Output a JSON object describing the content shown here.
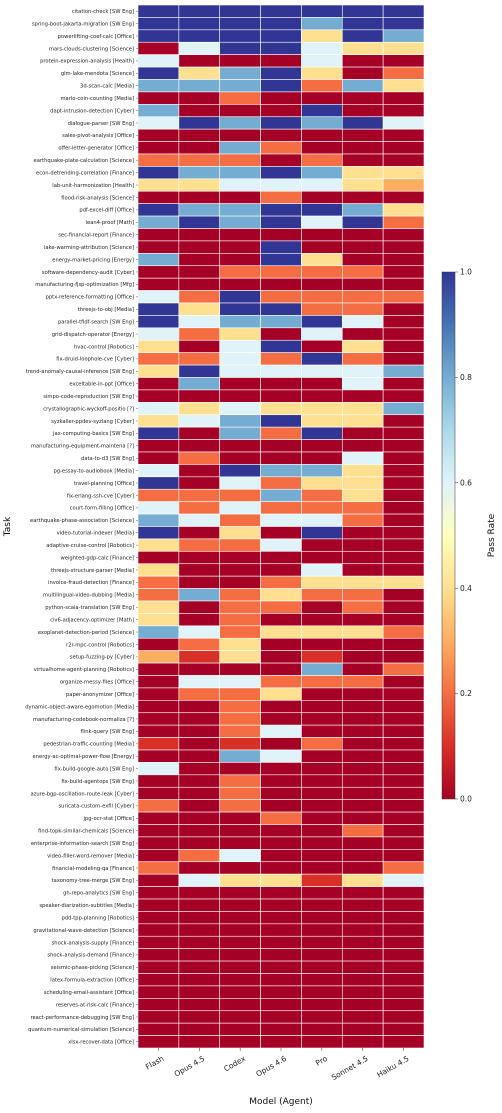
{
  "chart_data": {
    "type": "heatmap",
    "xlabel": "Model (Agent)",
    "ylabel": "Task",
    "colorbar_label": "Pass Rate",
    "colorbar_ticks": [
      "0.0",
      "0.2",
      "0.4",
      "0.6",
      "0.8",
      "1.0"
    ],
    "vmin": 0,
    "vmax": 1,
    "colormap": "RdYlBu",
    "columns": [
      "Flash",
      "Opus 4.5",
      "Codex",
      "Opus 4.6",
      "Pro",
      "Sonnet 4.5",
      "Haiku 4.5"
    ],
    "rows": [
      {
        "label": "citation-check [SW Eng]",
        "values": [
          1,
          1,
          1,
          1,
          1,
          1,
          1
        ]
      },
      {
        "label": "spring-boot-jakarta-migration [SW Eng]",
        "values": [
          1,
          1,
          1,
          1,
          0.8,
          1,
          1
        ]
      },
      {
        "label": "powerlifting-coef-calc [Office]",
        "values": [
          1,
          1,
          1,
          1,
          0.4,
          1,
          0.8
        ]
      },
      {
        "label": "mars-clouds-clustering [Science]",
        "values": [
          0,
          0.6,
          1,
          1,
          0.6,
          0.4,
          0.4
        ]
      },
      {
        "label": "protein-expression-analysis [Health]",
        "values": [
          0.6,
          0,
          0,
          0,
          0.6,
          0,
          0
        ]
      },
      {
        "label": "glm-lake-mendota [Science]",
        "values": [
          1,
          0.4,
          0.8,
          1,
          0.4,
          0,
          0.2
        ]
      },
      {
        "label": "3d-scan-calc [Media]",
        "values": [
          0.8,
          0.8,
          0.8,
          1,
          0.2,
          0.8,
          0.4
        ]
      },
      {
        "label": "marlo-coin-counting [Media]",
        "values": [
          0,
          0,
          0.2,
          0,
          0,
          0,
          0
        ]
      },
      {
        "label": "dapt-intrusion-detection [Cyber]",
        "values": [
          0.8,
          0,
          0,
          0,
          1,
          0,
          0
        ]
      },
      {
        "label": "dialogue-parser [SW Eng]",
        "values": [
          0.6,
          1,
          0.8,
          1,
          0.8,
          1,
          0.6
        ]
      },
      {
        "label": "sales-pivot-analysis [Office]",
        "values": [
          0,
          0,
          0,
          0,
          0,
          0,
          0
        ]
      },
      {
        "label": "offer-letter-generator [Office]",
        "values": [
          0,
          0,
          0.8,
          0.2,
          0,
          0,
          0
        ]
      },
      {
        "label": "earthquake-plate-calculation [Science]",
        "values": [
          0.2,
          0.2,
          0.2,
          0,
          0.2,
          0,
          0
        ]
      },
      {
        "label": "econ-detrending-correlation [Finance]",
        "values": [
          1,
          0.8,
          0.8,
          1,
          0.8,
          0.4,
          0.4
        ]
      },
      {
        "label": "lab-unit-harmonization [Health]",
        "values": [
          0.4,
          0.4,
          0.6,
          0.6,
          0.6,
          0.4,
          0.3
        ]
      },
      {
        "label": "flood-risk-analysis [Science]",
        "values": [
          0,
          0,
          0,
          0.2,
          0,
          0,
          0
        ]
      },
      {
        "label": "pdf-excel-diff [Office]",
        "values": [
          1,
          0.8,
          0.8,
          1,
          1,
          0.8,
          0.4
        ]
      },
      {
        "label": "lean4-proof [Math]",
        "values": [
          0.8,
          1,
          0.8,
          1,
          0.6,
          1,
          0.2
        ]
      },
      {
        "label": "sec-financial-report [Finance]",
        "values": [
          0,
          0,
          0,
          0,
          0,
          0,
          0
        ]
      },
      {
        "label": "lake-warming-attribution [Science]",
        "values": [
          0,
          0,
          0,
          1,
          0,
          0,
          0
        ]
      },
      {
        "label": "energy-market-pricing [Energy]",
        "values": [
          0.8,
          0,
          0,
          1,
          0.4,
          0,
          0
        ]
      },
      {
        "label": "software-dependency-audit [Cyber]",
        "values": [
          0,
          0,
          0.2,
          0.2,
          0.2,
          0.2,
          0
        ]
      },
      {
        "label": "manufacturing-fjsp-optimization [Mfg]",
        "values": [
          0,
          0,
          0,
          0,
          0,
          0,
          0
        ]
      },
      {
        "label": "pptx-reference-formatting [Office]",
        "values": [
          0.6,
          0.2,
          1,
          0.2,
          0.2,
          0.2,
          0.2
        ]
      },
      {
        "label": "threejs-to-obj [Media]",
        "values": [
          1,
          0.4,
          1,
          1,
          0.2,
          0.2,
          0
        ]
      },
      {
        "label": "parallel-tfidf-search [SW Eng]",
        "values": [
          1,
          0.6,
          0.8,
          0.8,
          1,
          0.6,
          0
        ]
      },
      {
        "label": "grid-dispatch-operator [Energy]",
        "values": [
          0.6,
          0.2,
          0.4,
          0,
          0.6,
          0,
          0
        ]
      },
      {
        "label": "hvac-control [Robotics]",
        "values": [
          0.4,
          0,
          0.6,
          1,
          0,
          0.4,
          0
        ]
      },
      {
        "label": "fix-druid-loophole-cve [Cyber]",
        "values": [
          0.2,
          0.2,
          0.6,
          0.2,
          1,
          0.2,
          0
        ]
      },
      {
        "label": "trend-anomaly-causal-inference [SW Eng]",
        "values": [
          0.4,
          1,
          0.6,
          0.6,
          0.6,
          0.6,
          0.8
        ]
      },
      {
        "label": "exceltable-in-ppt [Office]",
        "values": [
          0,
          0.8,
          0,
          0,
          0,
          0.6,
          0
        ]
      },
      {
        "label": "simpo-code-reproduction [SW Eng]",
        "values": [
          0,
          0,
          0,
          0,
          0,
          0,
          0
        ]
      },
      {
        "label": "crystallographic-wyckoff-positio [?]",
        "values": [
          0.6,
          0.4,
          0.6,
          0.4,
          0.4,
          0.4,
          0.8
        ]
      },
      {
        "label": "syzkaller-ppdev-syzlang [Cyber]",
        "values": [
          0.4,
          0.6,
          0.8,
          1,
          0.4,
          0.4,
          0
        ]
      },
      {
        "label": "jax-computing-basics [SW Eng]",
        "values": [
          1,
          0,
          0.8,
          0.2,
          1,
          0,
          0
        ]
      },
      {
        "label": "manufacturing-equipment-maintena [?]",
        "values": [
          0,
          0,
          0,
          0,
          0,
          0,
          0
        ]
      },
      {
        "label": "data-to-d3 [SW Eng]",
        "values": [
          0,
          0.2,
          0,
          0,
          0,
          0.6,
          0
        ]
      },
      {
        "label": "pg-essay-to-audiobook [Media]",
        "values": [
          0.6,
          0,
          1,
          0.8,
          0.8,
          0.4,
          0
        ]
      },
      {
        "label": "travel-planning [Office]",
        "values": [
          1,
          0,
          0.6,
          0.2,
          0.4,
          0.4,
          0
        ]
      },
      {
        "label": "fix-erlang-ssh-cve [Cyber]",
        "values": [
          0.2,
          0.2,
          0.2,
          0.8,
          0.2,
          0.4,
          0
        ]
      },
      {
        "label": "court-form-filling [Office]",
        "values": [
          0.6,
          0.2,
          0.6,
          0.2,
          0.2,
          0.2,
          0
        ]
      },
      {
        "label": "earthquake-phase-association [Science]",
        "values": [
          0.8,
          0.6,
          0.2,
          0.6,
          0.6,
          0.2,
          0
        ]
      },
      {
        "label": "video-tutorial-indexer [Media]",
        "values": [
          1,
          0,
          0.4,
          0,
          1,
          0,
          0
        ]
      },
      {
        "label": "adaptive-cruise-control [Robotics]",
        "values": [
          0.4,
          0.2,
          0.2,
          0.6,
          0,
          0,
          0
        ]
      },
      {
        "label": "weighted-gdp-calc [Finance]",
        "values": [
          0,
          0,
          0,
          0,
          0,
          0,
          0
        ]
      },
      {
        "label": "threejs-structure-parser [Media]",
        "values": [
          0.4,
          0,
          0,
          0,
          0.6,
          0,
          0
        ]
      },
      {
        "label": "invoice-fraud-detection [Finance]",
        "values": [
          0.2,
          0,
          0,
          0.2,
          0.4,
          0.4,
          0.4
        ]
      },
      {
        "label": "multilingual-video-dubbing [Media]",
        "values": [
          0.2,
          0.8,
          0.2,
          0.4,
          0.2,
          0.2,
          0
        ]
      },
      {
        "label": "python-scala-translation [SW Eng]",
        "values": [
          0.4,
          0,
          0.2,
          0.2,
          0,
          0.2,
          0
        ]
      },
      {
        "label": "civ6-adjacency-optimizer [Math]",
        "values": [
          0.4,
          0,
          0.2,
          0,
          0,
          0,
          0
        ]
      },
      {
        "label": "exoplanet-detection-period [Science]",
        "values": [
          0.8,
          0.6,
          0.2,
          0.4,
          0.4,
          0.4,
          0.2
        ]
      },
      {
        "label": "r2r-mpc-control [Robotics]",
        "values": [
          0,
          0.2,
          0.4,
          0,
          0,
          0,
          0
        ]
      },
      {
        "label": "setup-fuzzing-py [Cyber]",
        "values": [
          0.3,
          0.1,
          0.4,
          0,
          0.1,
          0,
          0
        ]
      },
      {
        "label": "virtualhome-agent-planning [Robotics]",
        "values": [
          0,
          0,
          0,
          0,
          0.8,
          0,
          0.2
        ]
      },
      {
        "label": "organize-messy-files [Office]",
        "values": [
          0,
          0.6,
          0.6,
          0.2,
          0.2,
          0.2,
          0
        ]
      },
      {
        "label": "paper-anonymizer [Office]",
        "values": [
          0,
          0.2,
          0.2,
          0.4,
          0,
          0,
          0
        ]
      },
      {
        "label": "dynamic-object-aware-egomotion [Media]",
        "values": [
          0,
          0,
          0.2,
          0,
          0,
          0,
          0
        ]
      },
      {
        "label": "manufacturing-codebook-normaliza [?]",
        "values": [
          0,
          0,
          0.2,
          0,
          0,
          0,
          0
        ]
      },
      {
        "label": "flink-query [SW Eng]",
        "values": [
          0,
          0,
          0.2,
          0.6,
          0,
          0,
          0
        ]
      },
      {
        "label": "pedestrian-traffic-counting [Media]",
        "values": [
          0.1,
          0,
          0.1,
          0,
          0.2,
          0,
          0
        ]
      },
      {
        "label": "energy-ac-optimal-power-flow [Energy]",
        "values": [
          0,
          0,
          0.8,
          0.6,
          0,
          0,
          0
        ]
      },
      {
        "label": "fix-build-google-auto [SW Eng]",
        "values": [
          0.6,
          0,
          0,
          0,
          0,
          0,
          0
        ]
      },
      {
        "label": "fix-build-agentops [SW Eng]",
        "values": [
          0,
          0,
          0.2,
          0,
          0,
          0,
          0
        ]
      },
      {
        "label": "azure-bgp-oscillation-route-leak [Cyber]",
        "values": [
          0,
          0,
          0.2,
          0,
          0,
          0,
          0
        ]
      },
      {
        "label": "suricata-custom-exfil [Cyber]",
        "values": [
          0.2,
          0,
          0.2,
          0,
          0,
          0,
          0
        ]
      },
      {
        "label": "jpg-ocr-stat [Office]",
        "values": [
          0,
          0,
          0,
          0.2,
          0,
          0,
          0
        ]
      },
      {
        "label": "find-topk-similar-chemicals [Science]",
        "values": [
          0,
          0,
          0,
          0,
          0,
          0.2,
          0
        ]
      },
      {
        "label": "enterprise-information-search [SW Eng]",
        "values": [
          0,
          0,
          0,
          0,
          0,
          0,
          0
        ]
      },
      {
        "label": "video-filler-word-remover [Media]",
        "values": [
          0,
          0.2,
          0.6,
          0,
          0,
          0,
          0
        ]
      },
      {
        "label": "financial-modeling-qa [Finance]",
        "values": [
          0.2,
          0,
          0,
          0,
          0,
          0,
          0.2
        ]
      },
      {
        "label": "taxonomy-tree-merge [SW Eng]",
        "values": [
          0,
          0.6,
          0.4,
          0.4,
          0.1,
          0.4,
          0.6
        ]
      },
      {
        "label": "gh-repo-analytics [SW Eng]",
        "values": [
          0,
          0,
          0,
          0,
          0,
          0,
          0
        ]
      },
      {
        "label": "speaker-diarization-subtitles [Media]",
        "values": [
          0,
          0,
          0,
          0,
          0,
          0,
          0
        ]
      },
      {
        "label": "pdd-tpp-planning [Robotics]",
        "values": [
          0,
          0,
          0,
          0,
          0,
          0,
          0
        ]
      },
      {
        "label": "gravitational-wave-detection [Science]",
        "values": [
          0,
          0,
          0,
          0,
          0,
          0,
          0
        ]
      },
      {
        "label": "shock-analysis-supply [Finance]",
        "values": [
          0,
          0,
          0,
          0,
          0,
          0,
          0
        ]
      },
      {
        "label": "shock-analysis-demand [Finance]",
        "values": [
          0,
          0,
          0,
          0,
          0,
          0,
          0
        ]
      },
      {
        "label": "seismic-phase-picking [Science]",
        "values": [
          0,
          0,
          0,
          0,
          0,
          0,
          0
        ]
      },
      {
        "label": "latex-formula-extraction [Office]",
        "values": [
          0,
          0,
          0,
          0,
          0,
          0,
          0
        ]
      },
      {
        "label": "scheduling-email-assistant [Office]",
        "values": [
          0,
          0,
          0,
          0,
          0,
          0,
          0
        ]
      },
      {
        "label": "reserves-at-risk-calc [Finance]",
        "values": [
          0,
          0,
          0,
          0,
          0,
          0,
          0
        ]
      },
      {
        "label": "react-performance-debugging [SW Eng]",
        "values": [
          0,
          0,
          0,
          0,
          0,
          0,
          0
        ]
      },
      {
        "label": "quantum-numerical-simulation [Science]",
        "values": [
          0,
          0,
          0,
          0,
          0,
          0,
          0
        ]
      },
      {
        "label": "xlsx-recover-data [Office]",
        "values": [
          0,
          0,
          0,
          0,
          0,
          0,
          0
        ]
      }
    ]
  }
}
